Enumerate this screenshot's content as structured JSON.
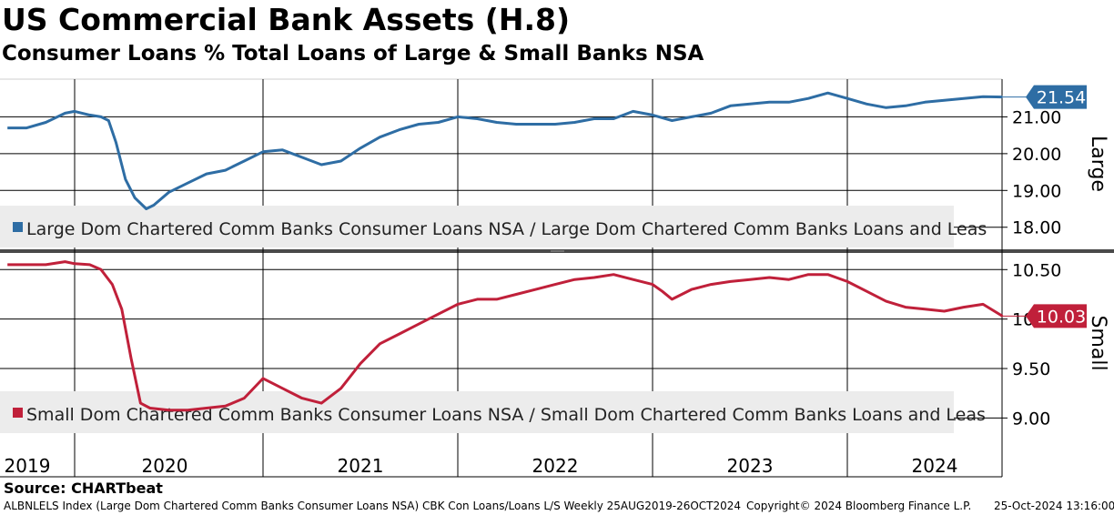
{
  "header": {
    "title": "US Commercial Bank Assets (H.8)",
    "subtitle": "Consumer Loans % Total Loans of Large & Small Banks NSA"
  },
  "footer": {
    "source": "Source: CHARTbeat",
    "ticker": "ALBNLELS Index (Large Dom Chartered Comm Banks Consumer Loans NSA) CBK Con Loans/Loans L/S  Weekly 25AUG2019-26OCT2024",
    "copyright": "Copyright© 2024 Bloomberg Finance L.P.",
    "timestamp": "25-Oct-2024 13:16:00"
  },
  "colors": {
    "large": "#2e6da4",
    "small": "#c0203a",
    "grid": "#000000"
  },
  "chart_data": [
    {
      "type": "line",
      "panel": "top",
      "side_label": "Large",
      "legend": "Large Dom Chartered Comm Banks Consumer Loans NSA / Large Dom Chartered Comm Banks Loans and Leas",
      "last_value": "21.54",
      "ylim": [
        17.4,
        22.0
      ],
      "yticks": [
        "18.00",
        "19.00",
        "20.00",
        "21.00"
      ],
      "ytick_values": [
        18,
        19,
        20,
        21
      ],
      "x_categories": [
        "2019",
        "2020",
        "2021",
        "2022",
        "2023",
        "2024"
      ],
      "x": [
        2019.65,
        2019.75,
        2019.85,
        2019.95,
        2020.0,
        2020.08,
        2020.14,
        2020.18,
        2020.22,
        2020.27,
        2020.32,
        2020.38,
        2020.42,
        2020.5,
        2020.6,
        2020.7,
        2020.8,
        2020.9,
        2021.0,
        2021.1,
        2021.2,
        2021.3,
        2021.4,
        2021.5,
        2021.6,
        2021.7,
        2021.8,
        2021.9,
        2022.0,
        2022.1,
        2022.2,
        2022.3,
        2022.4,
        2022.5,
        2022.6,
        2022.7,
        2022.8,
        2022.9,
        2023.0,
        2023.1,
        2023.2,
        2023.3,
        2023.4,
        2023.5,
        2023.6,
        2023.7,
        2023.8,
        2023.9,
        2024.0,
        2024.1,
        2024.2,
        2024.3,
        2024.4,
        2024.5,
        2024.6,
        2024.7,
        2024.8
      ],
      "y": [
        20.7,
        20.7,
        20.85,
        21.1,
        21.15,
        21.05,
        21.0,
        20.9,
        20.3,
        19.3,
        18.8,
        18.5,
        18.6,
        18.95,
        19.2,
        19.45,
        19.55,
        19.8,
        20.05,
        20.1,
        19.9,
        19.7,
        19.8,
        20.15,
        20.45,
        20.65,
        20.8,
        20.85,
        21.0,
        20.95,
        20.85,
        20.8,
        20.8,
        20.8,
        20.85,
        20.95,
        20.95,
        21.15,
        21.05,
        20.9,
        21.0,
        21.1,
        21.3,
        21.35,
        21.4,
        21.4,
        21.5,
        21.65,
        21.5,
        21.35,
        21.25,
        21.3,
        21.4,
        21.45,
        21.5,
        21.55,
        21.54
      ]
    },
    {
      "type": "line",
      "panel": "bottom",
      "side_label": "Small",
      "legend": "Small Dom Chartered Comm Banks Consumer Loans NSA / Small Dom Chartered Comm Banks Loans and Leas",
      "last_value": "10.03",
      "ylim": [
        8.7,
        10.65
      ],
      "yticks": [
        "9.00",
        "9.50",
        "10.00",
        "10.50"
      ],
      "ytick_values": [
        9.0,
        9.5,
        10.0,
        10.5
      ],
      "x": [
        2019.65,
        2019.75,
        2019.85,
        2019.95,
        2020.0,
        2020.08,
        2020.14,
        2020.2,
        2020.25,
        2020.3,
        2020.35,
        2020.4,
        2020.5,
        2020.6,
        2020.7,
        2020.8,
        2020.9,
        2021.0,
        2021.1,
        2021.2,
        2021.3,
        2021.4,
        2021.5,
        2021.6,
        2021.7,
        2021.8,
        2021.9,
        2022.0,
        2022.1,
        2022.2,
        2022.3,
        2022.4,
        2022.5,
        2022.6,
        2022.7,
        2022.8,
        2022.9,
        2023.0,
        2023.05,
        2023.1,
        2023.2,
        2023.3,
        2023.4,
        2023.5,
        2023.6,
        2023.7,
        2023.8,
        2023.9,
        2024.0,
        2024.1,
        2024.2,
        2024.3,
        2024.4,
        2024.5,
        2024.6,
        2024.7,
        2024.8
      ],
      "y": [
        10.55,
        10.55,
        10.55,
        10.58,
        10.56,
        10.55,
        10.5,
        10.35,
        10.1,
        9.6,
        9.15,
        9.1,
        9.08,
        9.08,
        9.1,
        9.12,
        9.2,
        9.4,
        9.3,
        9.2,
        9.15,
        9.3,
        9.55,
        9.75,
        9.85,
        9.95,
        10.05,
        10.15,
        10.2,
        10.2,
        10.25,
        10.3,
        10.35,
        10.4,
        10.42,
        10.45,
        10.4,
        10.35,
        10.28,
        10.2,
        10.3,
        10.35,
        10.38,
        10.4,
        10.42,
        10.4,
        10.45,
        10.45,
        10.38,
        10.28,
        10.18,
        10.12,
        10.1,
        10.08,
        10.12,
        10.15,
        10.03
      ]
    }
  ]
}
